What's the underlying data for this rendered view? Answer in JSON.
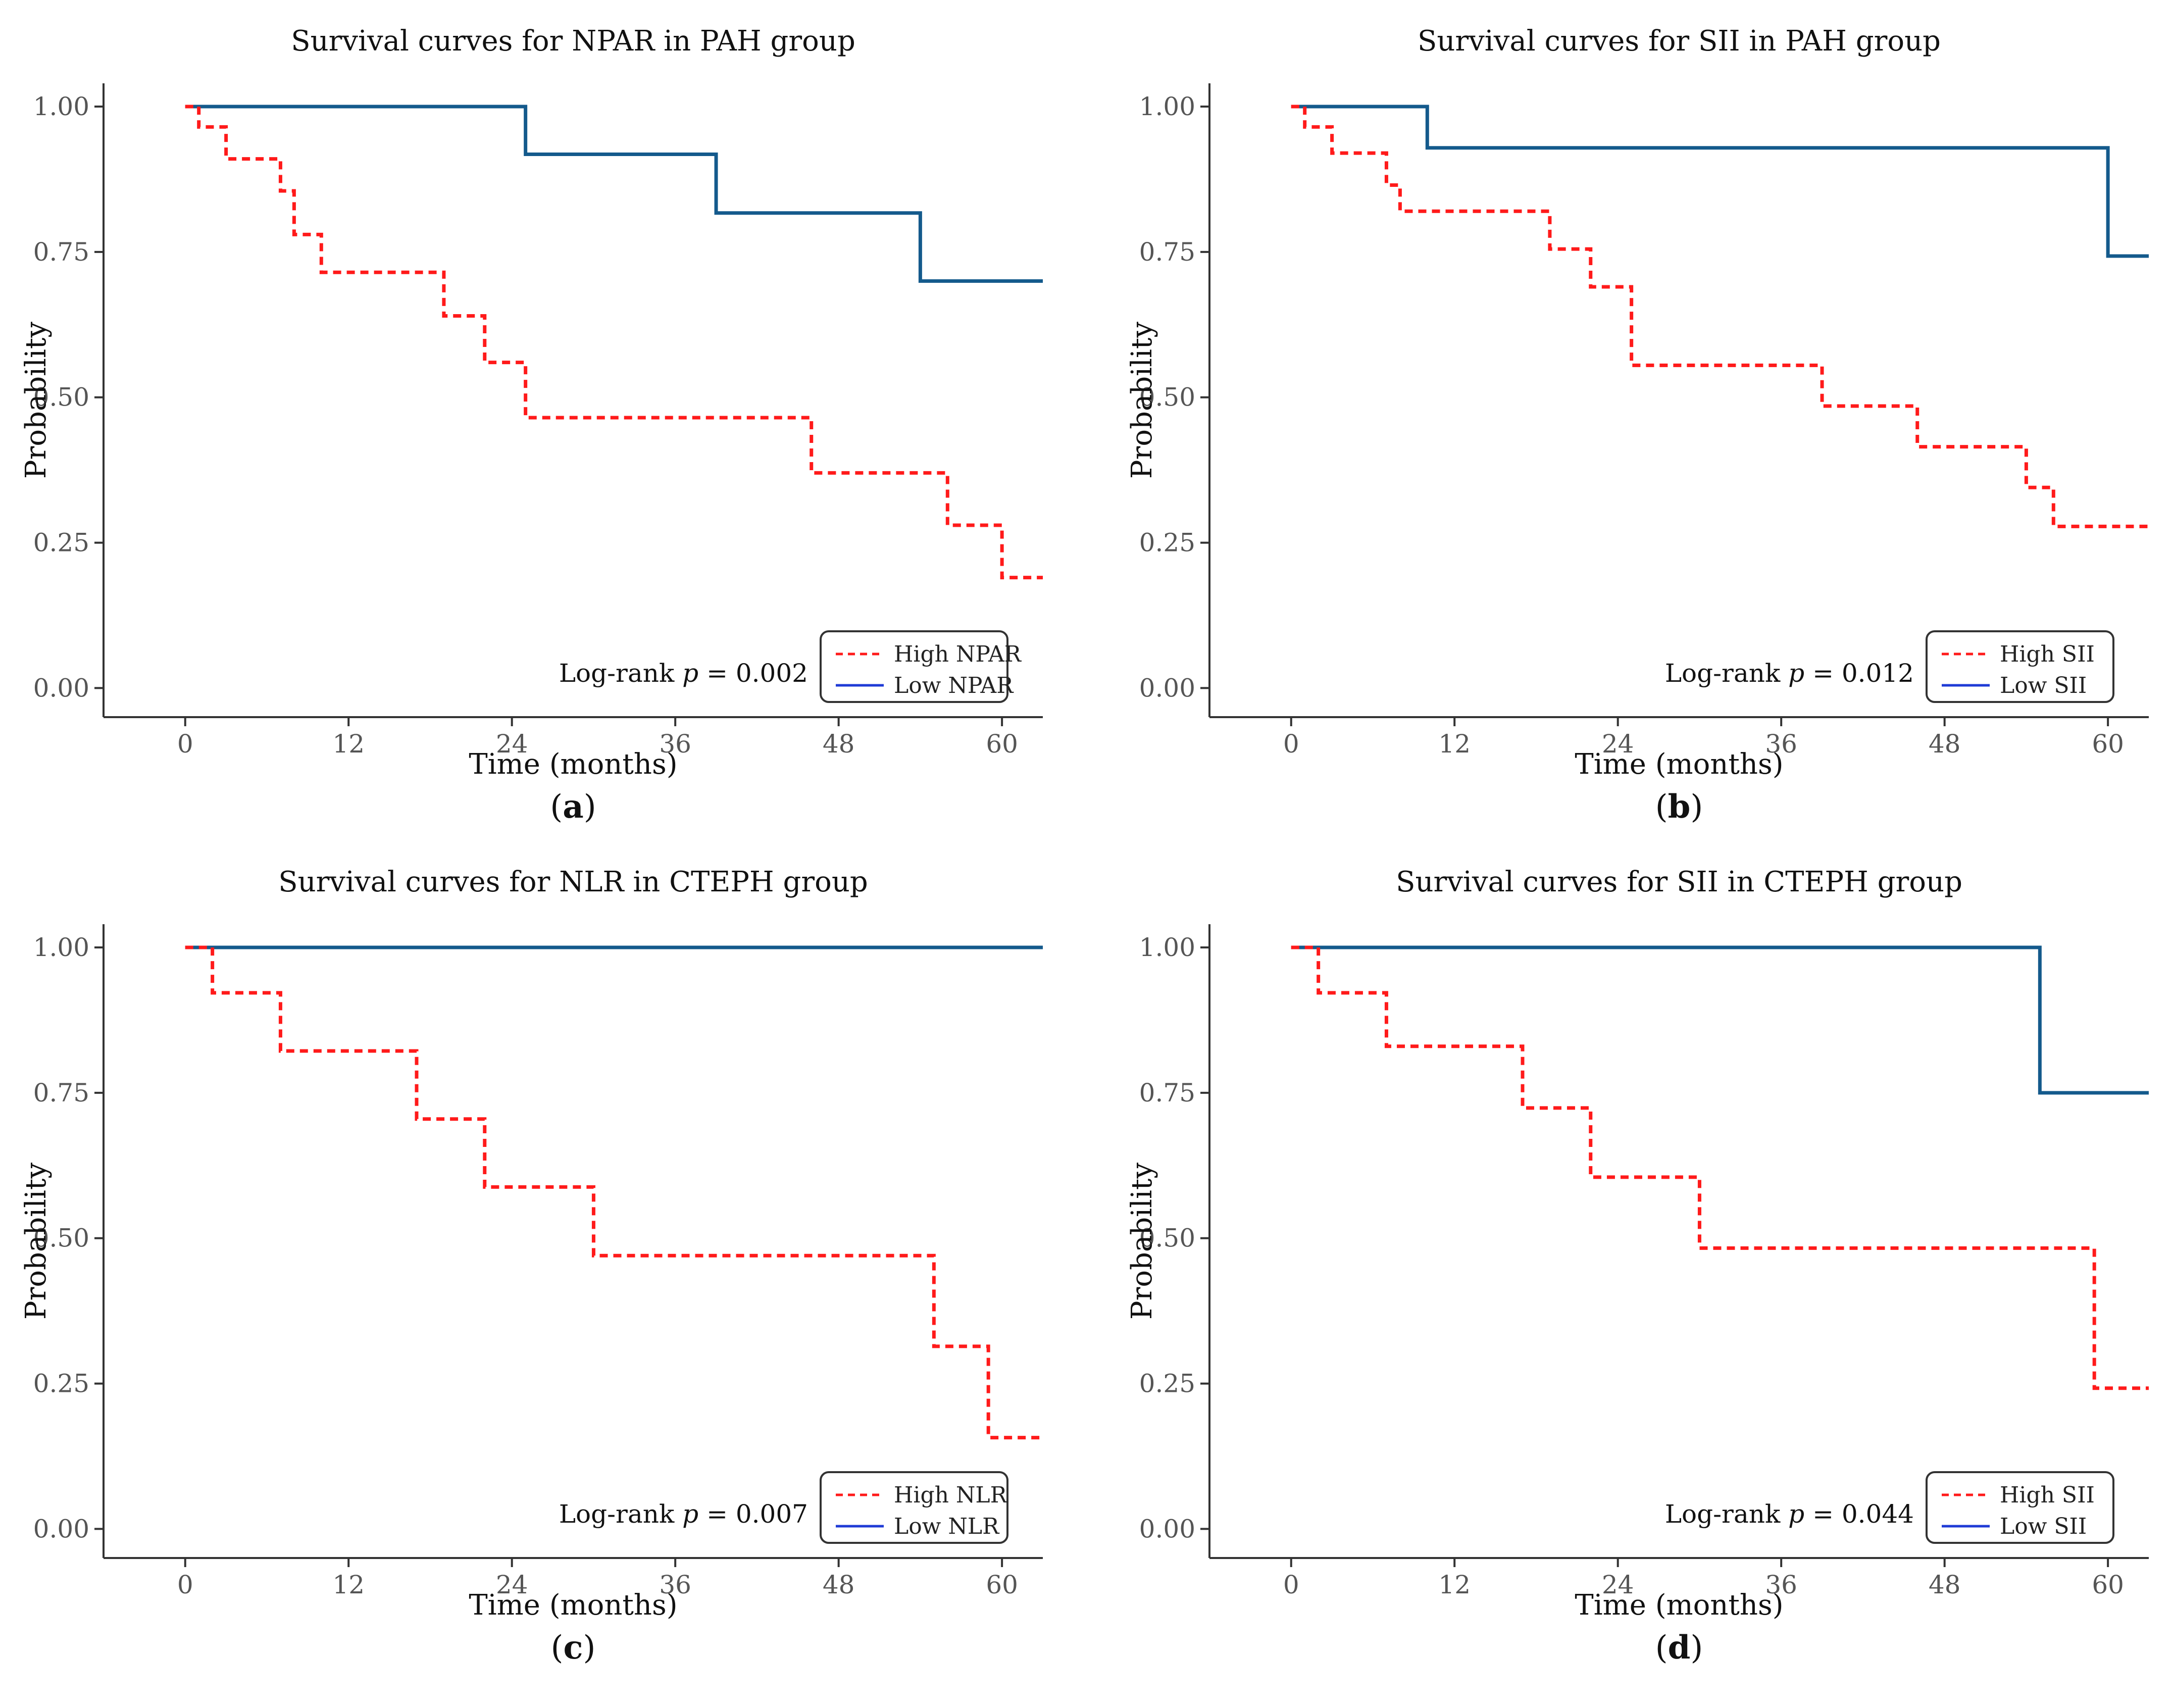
{
  "chart_data": [
    {
      "type": "line",
      "panel": "a",
      "title": "Survival curves for NPAR in PAH group",
      "xlabel": "Time (months)",
      "ylabel": "Probability",
      "xlim": [
        -6,
        63
      ],
      "ylim": [
        -0.05,
        1.04
      ],
      "xticks": [
        0,
        12,
        24,
        36,
        48,
        60
      ],
      "xtick_labels": [
        "0",
        "12",
        "24",
        "36",
        "48",
        "60"
      ],
      "yticks": [
        0,
        0.25,
        0.5,
        0.75,
        1
      ],
      "ytick_labels": [
        "0.00",
        "0.25",
        "0.50",
        "0.75",
        "1.00"
      ],
      "grid": false,
      "caption_prefix": "(",
      "caption_suffix": ")",
      "annotation": {
        "text_before": "Log-rank ",
        "italic": "p",
        "text_after": " = 0.002"
      },
      "legend": {
        "position": "bottom-right",
        "entries": [
          "High NPAR",
          "Low NPAR"
        ]
      },
      "series": [
        {
          "name": "High NPAR",
          "color": "#ff1a1a",
          "style": "dashed",
          "x": [
            0,
            1,
            3,
            7,
            8,
            10,
            19,
            22,
            25,
            46,
            56,
            60,
            63
          ],
          "y": [
            1.0,
            0.965,
            0.91,
            0.855,
            0.78,
            0.715,
            0.64,
            0.56,
            0.465,
            0.37,
            0.28,
            0.19,
            0.19
          ]
        },
        {
          "name": "Low NPAR",
          "color": "#145a8c",
          "style": "solid",
          "x": [
            0,
            25,
            39,
            54,
            63
          ],
          "y": [
            1.0,
            0.918,
            0.817,
            0.7,
            0.7
          ]
        }
      ]
    },
    {
      "type": "line",
      "panel": "b",
      "title": "Survival curves for SII in PAH group",
      "xlabel": "Time (months)",
      "ylabel": "Probability",
      "xlim": [
        -6,
        63
      ],
      "ylim": [
        -0.05,
        1.04
      ],
      "xticks": [
        0,
        12,
        24,
        36,
        48,
        60
      ],
      "xtick_labels": [
        "0",
        "12",
        "24",
        "36",
        "48",
        "60"
      ],
      "yticks": [
        0,
        0.25,
        0.5,
        0.75,
        1
      ],
      "ytick_labels": [
        "0.00",
        "0.25",
        "0.50",
        "0.75",
        "1.00"
      ],
      "grid": false,
      "caption_prefix": "(",
      "caption_suffix": ")",
      "annotation": {
        "text_before": "Log-rank ",
        "italic": "p",
        "text_after": " = 0.012"
      },
      "legend": {
        "position": "bottom-right",
        "entries": [
          "High SII",
          "Low SII"
        ]
      },
      "series": [
        {
          "name": "High SII",
          "color": "#ff1a1a",
          "style": "dashed",
          "x": [
            0,
            1,
            3,
            7,
            8,
            19,
            22,
            25,
            39,
            46,
            54,
            56,
            63
          ],
          "y": [
            1.0,
            0.965,
            0.92,
            0.865,
            0.82,
            0.755,
            0.69,
            0.555,
            0.485,
            0.415,
            0.345,
            0.278,
            0.278
          ]
        },
        {
          "name": "Low SII",
          "color": "#145a8c",
          "style": "solid",
          "x": [
            0,
            10,
            60,
            63
          ],
          "y": [
            1.0,
            0.929,
            0.743,
            0.743
          ]
        }
      ]
    },
    {
      "type": "line",
      "panel": "c",
      "title": "Survival curves for NLR in CTEPH group",
      "xlabel": "Time (months)",
      "ylabel": "Probability",
      "xlim": [
        -6,
        63
      ],
      "ylim": [
        -0.05,
        1.04
      ],
      "xticks": [
        0,
        12,
        24,
        36,
        48,
        60
      ],
      "xtick_labels": [
        "0",
        "12",
        "24",
        "36",
        "48",
        "60"
      ],
      "yticks": [
        0,
        0.25,
        0.5,
        0.75,
        1
      ],
      "ytick_labels": [
        "0.00",
        "0.25",
        "0.50",
        "0.75",
        "1.00"
      ],
      "grid": false,
      "caption_prefix": "(",
      "caption_suffix": ")",
      "annotation": {
        "text_before": "Log-rank ",
        "italic": "p",
        "text_after": " = 0.007"
      },
      "legend": {
        "position": "bottom-right",
        "entries": [
          "High NLR",
          "Low NLR"
        ]
      },
      "series": [
        {
          "name": "High NLR",
          "color": "#ff1a1a",
          "style": "dashed",
          "x": [
            0,
            2,
            7,
            17,
            22,
            30,
            55,
            59,
            63
          ],
          "y": [
            1.0,
            0.922,
            0.822,
            0.705,
            0.588,
            0.47,
            0.314,
            0.157,
            0.157
          ]
        },
        {
          "name": "Low NLR",
          "color": "#145a8c",
          "style": "solid",
          "x": [
            0,
            63
          ],
          "y": [
            1.0,
            1.0
          ]
        }
      ]
    },
    {
      "type": "line",
      "panel": "d",
      "title": "Survival curves for SII in CTEPH group",
      "xlabel": "Time (months)",
      "ylabel": "Probability",
      "xlim": [
        -6,
        63
      ],
      "ylim": [
        -0.05,
        1.04
      ],
      "xticks": [
        0,
        12,
        24,
        36,
        48,
        60
      ],
      "xtick_labels": [
        "0",
        "12",
        "24",
        "36",
        "48",
        "60"
      ],
      "yticks": [
        0,
        0.25,
        0.5,
        0.75,
        1
      ],
      "ytick_labels": [
        "0.00",
        "0.25",
        "0.50",
        "0.75",
        "1.00"
      ],
      "grid": false,
      "caption_prefix": "(",
      "caption_suffix": ")",
      "annotation": {
        "text_before": "Log-rank ",
        "italic": "p",
        "text_after": " = 0.044"
      },
      "legend": {
        "position": "bottom-right",
        "entries": [
          "High SII",
          "Low SII"
        ]
      },
      "series": [
        {
          "name": "High SII",
          "color": "#ff1a1a",
          "style": "dashed",
          "x": [
            0,
            2,
            7,
            17,
            22,
            30,
            59,
            63
          ],
          "y": [
            1.0,
            0.922,
            0.83,
            0.724,
            0.605,
            0.483,
            0.242,
            0.242
          ]
        },
        {
          "name": "Low SII",
          "color": "#145a8c",
          "style": "solid",
          "x": [
            0,
            55,
            63
          ],
          "y": [
            1.0,
            0.75,
            0.75
          ]
        }
      ]
    }
  ]
}
